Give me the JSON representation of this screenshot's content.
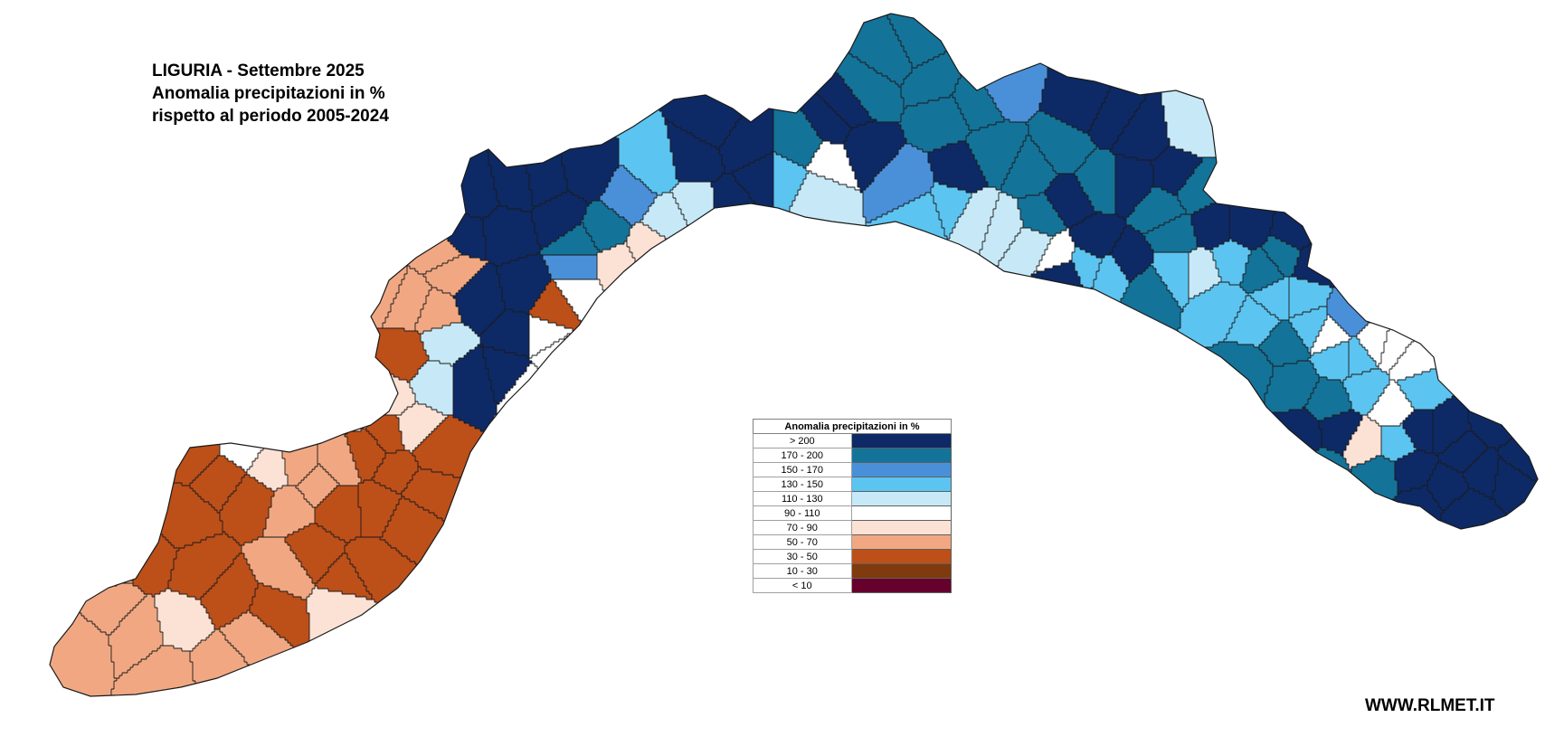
{
  "title": {
    "line1": "LIGURIA - Settembre 2025",
    "line2": "Anomalia precipitazioni in %",
    "line3": "rispetto al periodo 2005-2024"
  },
  "legend": {
    "header": "Anomalia precipitazioni in %",
    "items": [
      {
        "label": "> 200",
        "color": "#0d2a66"
      },
      {
        "label": "170 - 200",
        "color": "#147399"
      },
      {
        "label": "150 - 170",
        "color": "#4a90d9"
      },
      {
        "label": "130 - 150",
        "color": "#5cc4f0"
      },
      {
        "label": "110 - 130",
        "color": "#c7e9f7"
      },
      {
        "label": "90 - 110",
        "color": "#ffffff"
      },
      {
        "label": "70 - 90",
        "color": "#fce1d5"
      },
      {
        "label": "50 - 70",
        "color": "#f1a882"
      },
      {
        "label": "30 - 50",
        "color": "#bd4f19"
      },
      {
        "label": "10 - 30",
        "color": "#7f3a0e"
      },
      {
        "label": "< 10",
        "color": "#66002d"
      }
    ]
  },
  "watermark": "WWW.RLMET.IT"
}
